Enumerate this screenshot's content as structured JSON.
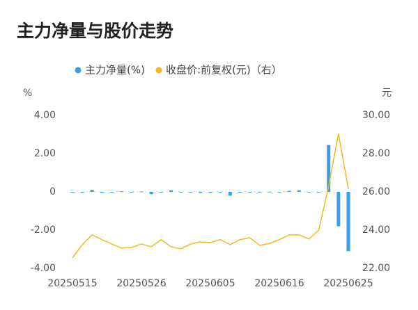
{
  "chart_data": {
    "type": "bar_line",
    "title": "主力净量与股价走势",
    "y_label": "%",
    "y2_label": "元",
    "categories": [
      "20250515",
      null,
      null,
      null,
      null,
      null,
      null,
      "20250526",
      null,
      null,
      null,
      null,
      null,
      null,
      "20250605",
      null,
      null,
      null,
      null,
      null,
      null,
      "20250616",
      null,
      null,
      null,
      null,
      null,
      null,
      "20250625"
    ],
    "series": [
      {
        "name": "主力净量(%)",
        "type": "bar",
        "color": "#3a9fe8",
        "values": [
          -0.03,
          -0.05,
          0.1,
          -0.05,
          0,
          0.03,
          -0.02,
          0.02,
          -0.12,
          -0.03,
          0.08,
          -0.03,
          0,
          -0.06,
          -0.05,
          -0.04,
          -0.2,
          0,
          -0.02,
          -0.03,
          0.01,
          -0.03,
          0.05,
          0.08,
          -0.03,
          -0.02,
          2.45,
          -1.8,
          -3.1
        ]
      },
      {
        "name": "收盘价:前复权(元)（右）",
        "type": "line",
        "axis": "y2",
        "color": "#f5b820",
        "values": [
          22.55,
          23.24,
          23.75,
          23.5,
          23.27,
          23.05,
          23.09,
          23.27,
          23.13,
          23.5,
          23.13,
          23.02,
          23.27,
          23.38,
          23.35,
          23.5,
          23.24,
          23.5,
          23.6,
          23.2,
          23.3,
          23.5,
          23.75,
          23.75,
          23.53,
          24.0,
          26.3,
          29.05,
          26.15
        ]
      }
    ],
    "ylim": [
      -4,
      4
    ],
    "yticks": [
      {
        "value": 4,
        "label": "4.00"
      },
      {
        "value": 2,
        "label": "2.00"
      },
      0,
      {
        "value": -2,
        "label": "-2.00"
      },
      {
        "value": -4,
        "label": "-4.00"
      }
    ],
    "y2lim": [
      22,
      30
    ],
    "y2ticks": [
      {
        "value": 30,
        "label": "30.00"
      },
      {
        "value": 28,
        "label": "28.00"
      },
      {
        "value": 26,
        "label": "26.00"
      },
      {
        "value": 24,
        "label": "24.00"
      },
      {
        "value": 22,
        "label": "22.00"
      }
    ],
    "grid": true,
    "legend": "top"
  }
}
